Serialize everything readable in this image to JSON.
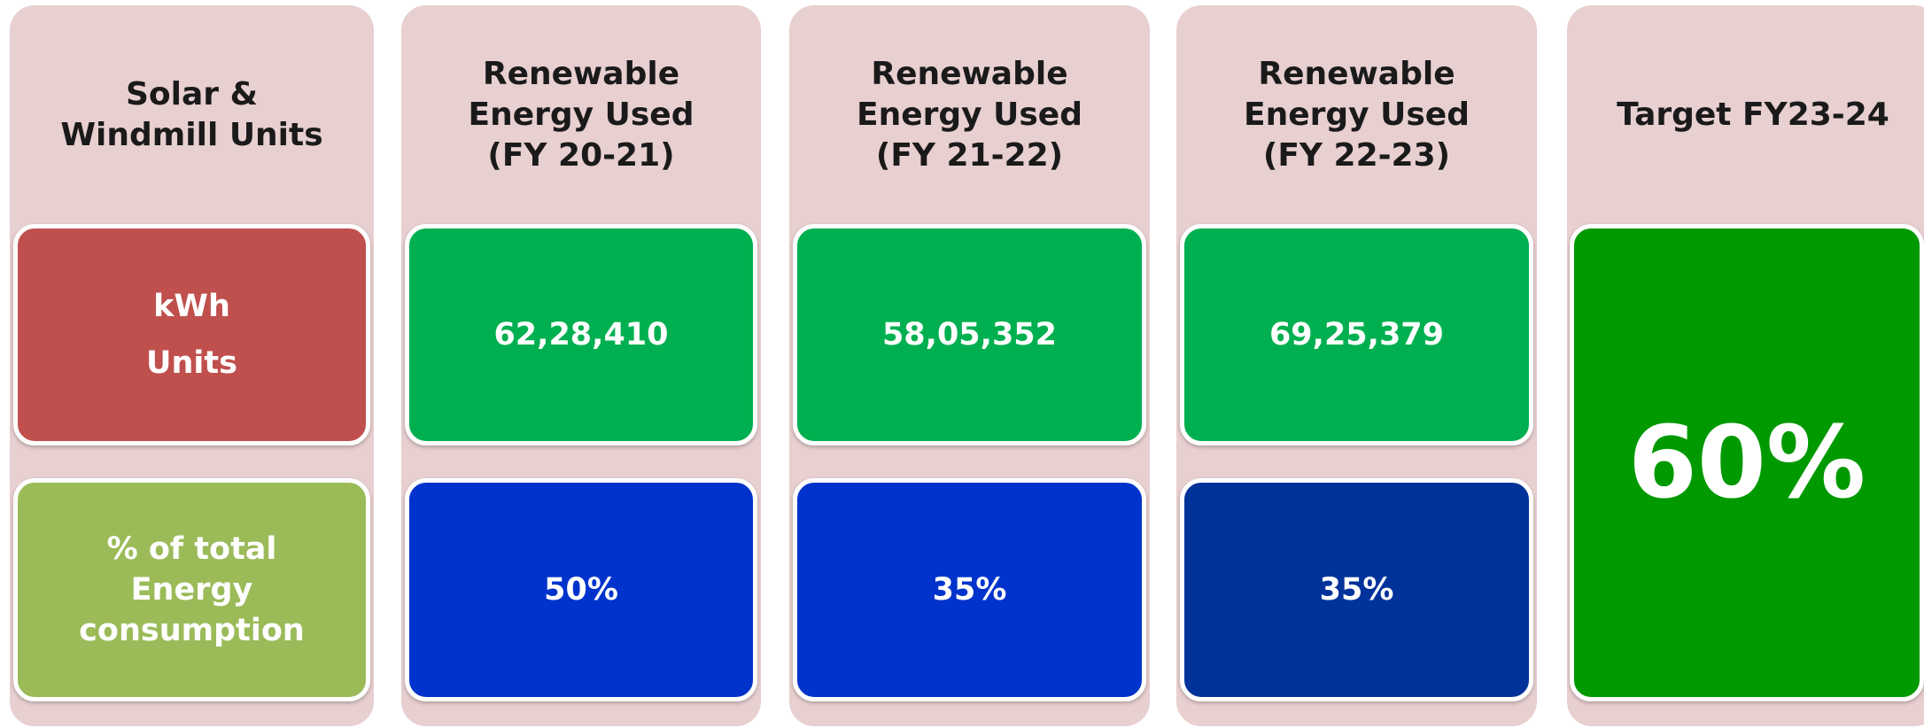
{
  "columns": [
    {
      "header": [
        "Solar &",
        "Windmill Units"
      ],
      "row1": [
        "kWh",
        "Units"
      ],
      "row2": [
        "% of total",
        "Energy",
        "consumption"
      ]
    },
    {
      "header": [
        "Renewable",
        "Energy Used",
        "(FY 20-21)"
      ],
      "row1": [
        "62,28,410"
      ],
      "row2": [
        "50%"
      ]
    },
    {
      "header": [
        "Renewable",
        "Energy Used",
        "(FY 21-22)"
      ],
      "row1": [
        "58,05,352"
      ],
      "row2": [
        "35%"
      ]
    },
    {
      "header": [
        "Renewable",
        "Energy Used",
        "(FY 22-23)"
      ],
      "row1": [
        "69,25,379"
      ],
      "row2": [
        "35%"
      ]
    }
  ],
  "target": {
    "header": [
      "Target FY23-24"
    ],
    "value": "60%"
  }
}
